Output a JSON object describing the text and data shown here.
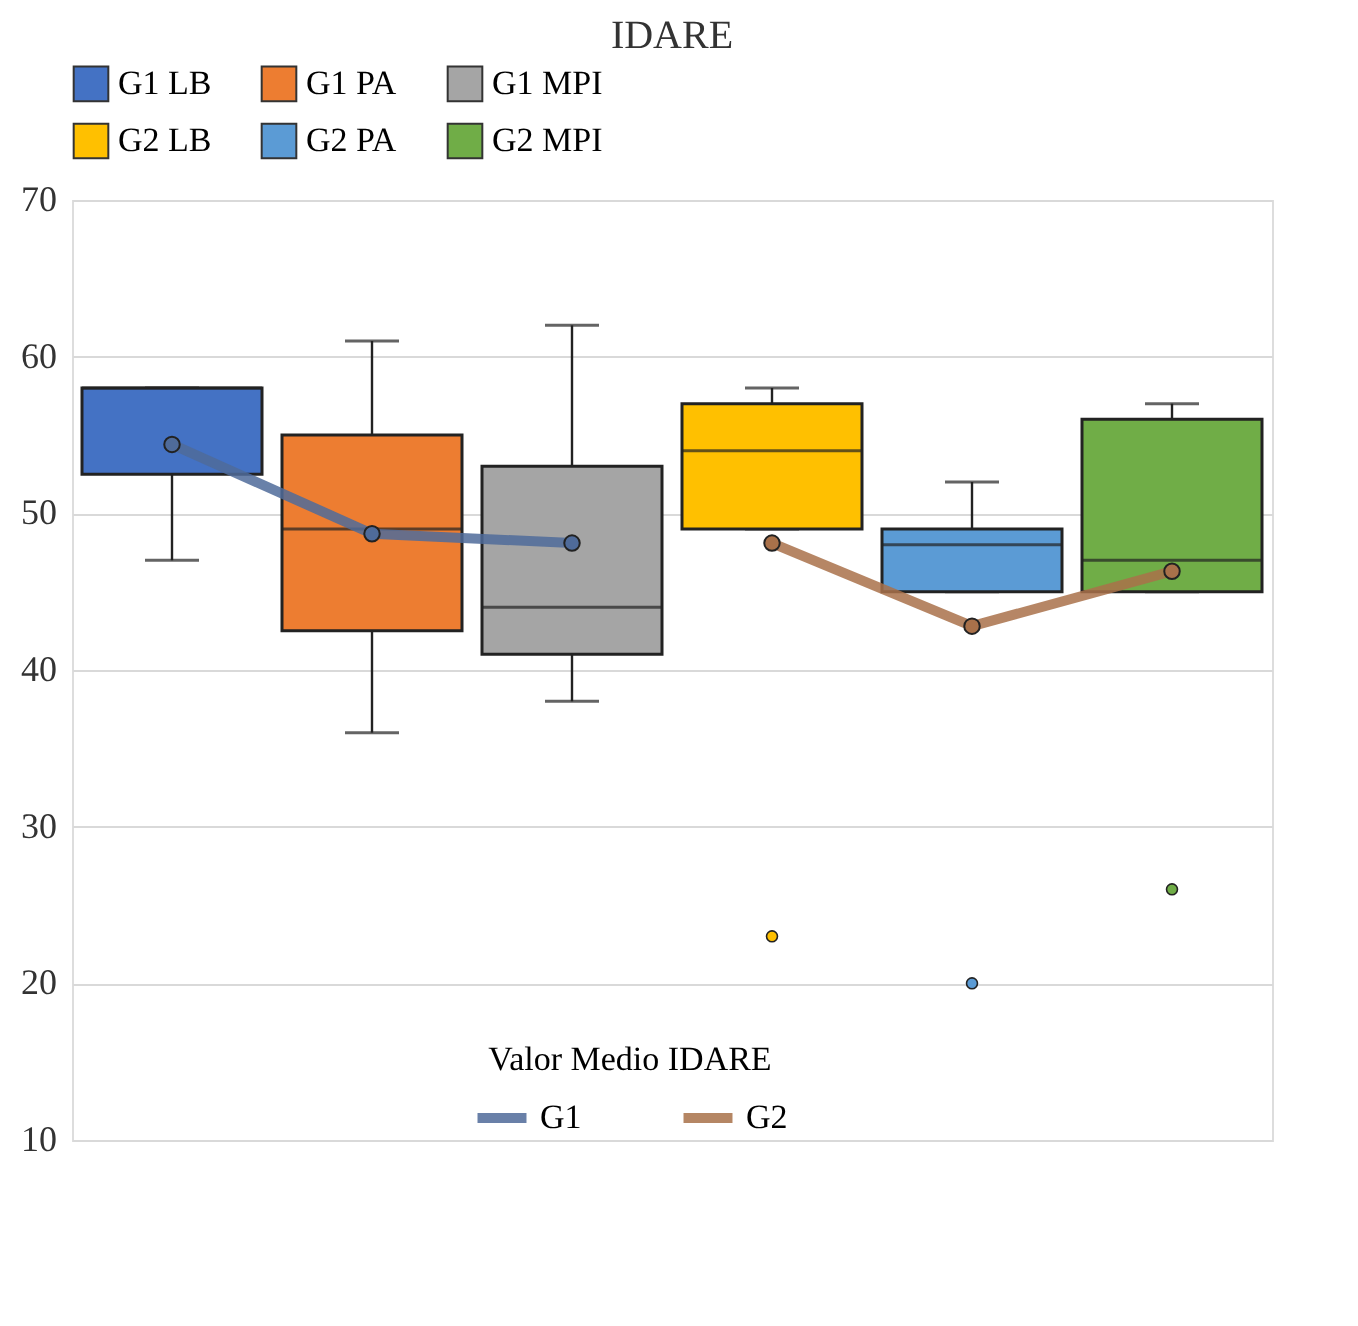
{
  "chart_data": {
    "type": "box",
    "title": "IDARE",
    "categories": [
      null,
      null,
      null,
      null,
      null,
      null
    ],
    "series": [
      {
        "name": "G1 LB",
        "type": "box",
        "color": "#4472c4",
        "boxes": [
          {
            "low": 47,
            "q1": 52.5,
            "median": 58,
            "q3": 58,
            "high": 58
          },
          null,
          null,
          null,
          null,
          null
        ]
      },
      {
        "name": "G1 PA",
        "type": "box",
        "color": "#ed7d31",
        "boxes": [
          null,
          {
            "low": 36,
            "q1": 42.5,
            "median": 49,
            "q3": 55,
            "high": 61
          },
          null,
          null,
          null,
          null
        ]
      },
      {
        "name": "G1 MPI",
        "type": "box",
        "color": "#a5a5a5",
        "boxes": [
          null,
          null,
          {
            "low": 38,
            "q1": 41,
            "median": 44,
            "q3": 53,
            "high": 62
          },
          null,
          null,
          null
        ]
      },
      {
        "name": "G2 LB",
        "type": "box",
        "color": "#ffc000",
        "boxes": [
          null,
          null,
          null,
          {
            "low": 49,
            "q1": 49,
            "median": 54,
            "q3": 57,
            "high": 58,
            "outliers": [
              23
            ]
          },
          null,
          null
        ]
      },
      {
        "name": "G2 PA",
        "type": "box",
        "color": "#5b9bd5",
        "boxes": [
          null,
          null,
          null,
          null,
          {
            "low": 45,
            "q1": 45,
            "median": 48,
            "q3": 49,
            "high": 52,
            "outliers": [
              20
            ]
          },
          null
        ]
      },
      {
        "name": "G2 MPI",
        "type": "box",
        "color": "#70ad47",
        "boxes": [
          null,
          null,
          null,
          null,
          null,
          {
            "low": 45,
            "q1": 45,
            "median": 47,
            "q3": 56,
            "high": 57,
            "outliers": [
              26
            ]
          }
        ]
      },
      {
        "name": "G1",
        "type": "line",
        "color": "#4f6b9a",
        "values": [
          54.4,
          48.7,
          48.1,
          null,
          null,
          null
        ]
      },
      {
        "name": "G2",
        "type": "line",
        "color": "#a9714a",
        "values": [
          null,
          null,
          null,
          48.1,
          42.8,
          46.3
        ]
      }
    ],
    "legend_title": "Valor Medio IDARE",
    "legend": "top",
    "marker": "circle",
    "ylim": [
      10,
      70
    ],
    "yticks": [
      10,
      20,
      30,
      40,
      50,
      60,
      70
    ],
    "grid": "y",
    "tick_labels": "y"
  }
}
